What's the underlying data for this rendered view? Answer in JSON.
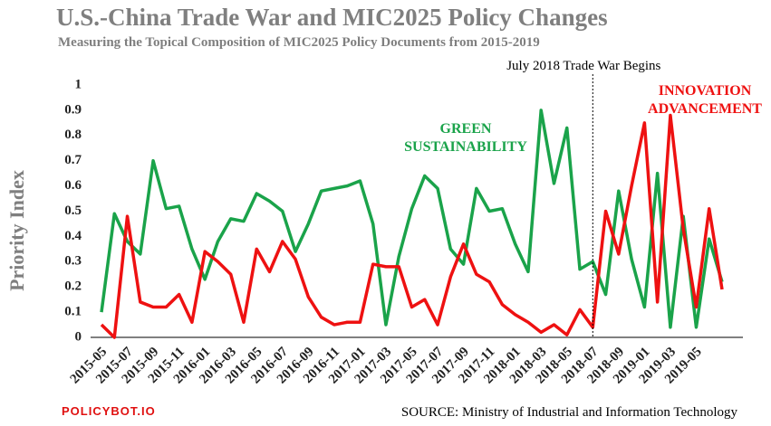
{
  "chart_data": {
    "type": "line",
    "title": "U.S.-China Trade War and MIC2025 Policy Changes",
    "subtitle": "Measuring the Topical Composition of MIC2025 Policy Documents from 2015-2019",
    "y_label": "Priority Index",
    "categories": [
      "2015-05",
      null,
      "2015-07",
      null,
      "2015-09",
      null,
      "2015-11",
      null,
      "2016-01",
      null,
      "2016-03",
      null,
      "2016-05",
      null,
      "2016-07",
      null,
      "2016-09",
      null,
      "2016-11",
      null,
      "2017-01",
      null,
      "2017-03",
      null,
      "2017-05",
      null,
      "2017-07",
      null,
      "2017-09",
      null,
      "2017-11",
      null,
      "2018-01",
      null,
      "2018-03",
      null,
      "2018-05",
      null,
      "2018-07",
      null,
      "2018-09",
      null,
      "2019-01",
      null,
      "2019-03",
      null,
      "2019-05",
      null,
      null
    ],
    "series": [
      {
        "label_lines": [
          "GREEN",
          "SUSTAINABILITY"
        ],
        "color": "#1aa34a",
        "values": [
          0.1,
          0.49,
          0.38,
          0.33,
          0.7,
          0.51,
          0.52,
          0.35,
          0.23,
          0.38,
          0.47,
          0.46,
          0.57,
          0.54,
          0.5,
          0.34,
          0.45,
          0.58,
          0.59,
          0.6,
          0.62,
          0.45,
          0.05,
          0.32,
          0.51,
          0.64,
          0.59,
          0.35,
          0.29,
          0.59,
          0.5,
          0.51,
          0.37,
          0.26,
          0.9,
          0.61,
          0.83,
          0.27,
          0.3,
          0.17,
          0.58,
          0.31,
          0.12,
          0.65,
          0.04,
          0.48,
          0.04,
          0.39,
          0.22
        ]
      },
      {
        "label_lines": [
          "INNOVATION",
          "ADVANCEMENT"
        ],
        "color": "#ee1111",
        "values": [
          0.05,
          0.0,
          0.48,
          0.14,
          0.12,
          0.12,
          0.17,
          0.06,
          0.34,
          0.3,
          0.25,
          0.06,
          0.35,
          0.26,
          0.38,
          0.31,
          0.16,
          0.08,
          0.05,
          0.06,
          0.06,
          0.29,
          0.28,
          0.28,
          0.12,
          0.15,
          0.05,
          0.24,
          0.37,
          0.25,
          0.22,
          0.13,
          0.09,
          0.06,
          0.02,
          0.05,
          0.01,
          0.11,
          0.04,
          0.5,
          0.33,
          0.6,
          0.85,
          0.14,
          0.88,
          0.43,
          0.12,
          0.51,
          0.19
        ]
      }
    ],
    "ylim": [
      0,
      1
    ],
    "yticks": [
      0,
      0.1,
      0.2,
      0.3,
      0.4,
      0.5,
      0.6,
      0.7,
      0.8,
      0.9,
      1
    ],
    "event": {
      "category": "2018-07",
      "label": "July 2018 Trade War Begins"
    },
    "brand": "POLICYBOT.IO",
    "source": "SOURCE: Ministry of Industrial and Information Technology"
  }
}
